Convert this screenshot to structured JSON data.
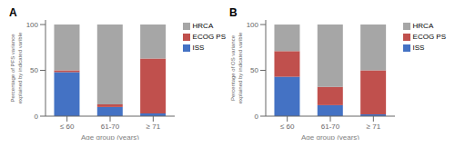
{
  "chart_data": [
    {
      "type": "bar",
      "title": "A",
      "stacked": true,
      "categories": [
        "≤ 60",
        "61-70",
        "≥ 71"
      ],
      "xlabel": "Age group (years)",
      "ylabel": "Percentage of PFS variance\nexplained by indicated varible",
      "series": [
        {
          "name": "ISS",
          "color": "#4472C4",
          "values": [
            48,
            10,
            3
          ]
        },
        {
          "name": "ECOG PS",
          "color": "#C0504D",
          "values": [
            2,
            3,
            60
          ]
        },
        {
          "name": "HRCA",
          "color": "#A6A6A6",
          "values": [
            50,
            87,
            37
          ]
        }
      ],
      "ylim": [
        0,
        105
      ],
      "yticks": [
        0,
        50,
        100
      ],
      "grid": false,
      "legend": "upper right"
    },
    {
      "type": "bar",
      "title": "B",
      "stacked": true,
      "categories": [
        "≤ 60",
        "61-70",
        "≥ 71"
      ],
      "xlabel": "Age group (years)",
      "ylabel": "Percentage of OS variance\nexplained by indicated varible",
      "series": [
        {
          "name": "ISS",
          "color": "#4472C4",
          "values": [
            43,
            12,
            2
          ]
        },
        {
          "name": "ECOG PS",
          "color": "#C0504D",
          "values": [
            28,
            20,
            48
          ]
        },
        {
          "name": "HRCA",
          "color": "#A6A6A6",
          "values": [
            29,
            68,
            50
          ]
        }
      ],
      "ylim": [
        0,
        105
      ],
      "yticks": [
        0,
        50,
        100
      ],
      "grid": false,
      "legend": "upper right"
    }
  ]
}
